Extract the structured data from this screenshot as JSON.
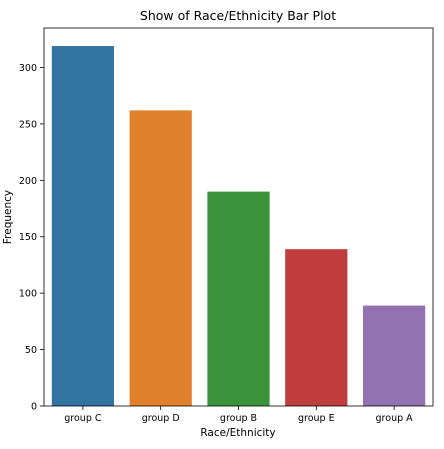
{
  "chart_data": {
    "type": "bar",
    "title": "Show of Race/Ethnicity Bar Plot",
    "xlabel": "Race/Ethnicity",
    "ylabel": "Frequency",
    "categories": [
      "group C",
      "group D",
      "group B",
      "group E",
      "group A"
    ],
    "values": [
      319,
      262,
      190,
      139,
      89
    ],
    "colors": [
      "#3274a1",
      "#e1812c",
      "#3a923a",
      "#c03d3e",
      "#9372b2"
    ],
    "ylim": [
      0,
      335
    ],
    "yticks": [
      0,
      50,
      100,
      150,
      200,
      250,
      300
    ],
    "grid": false,
    "legend": "none"
  }
}
